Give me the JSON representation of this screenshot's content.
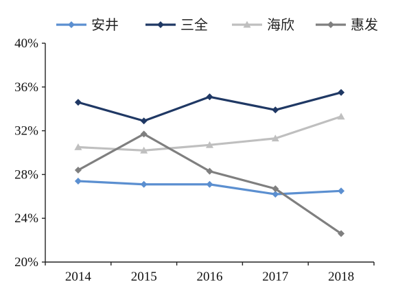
{
  "chart_data": {
    "type": "line",
    "categories": [
      "2014",
      "2015",
      "2016",
      "2017",
      "2018"
    ],
    "ylim": [
      0.2,
      0.4
    ],
    "yticks": [
      0.2,
      0.24,
      0.28,
      0.32,
      0.36,
      0.4
    ],
    "ytick_labels": [
      "20%",
      "24%",
      "28%",
      "32%",
      "36%",
      "40%"
    ],
    "grid": false,
    "legend_position": "top",
    "xlabel": "",
    "ylabel": "",
    "title": "",
    "series": [
      {
        "name": "安井",
        "color": "#5b8fd0",
        "marker": "diamond",
        "values": [
          0.274,
          0.271,
          0.271,
          0.262,
          0.265
        ]
      },
      {
        "name": "三全",
        "color": "#1f3864",
        "marker": "diamond",
        "values": [
          0.346,
          0.329,
          0.351,
          0.339,
          0.355
        ]
      },
      {
        "name": "海欣",
        "color": "#bfbfbf",
        "marker": "triangle",
        "values": [
          0.305,
          0.302,
          0.307,
          0.313,
          0.333
        ]
      },
      {
        "name": "惠发",
        "color": "#7f7f7f",
        "marker": "diamond",
        "values": [
          0.284,
          0.317,
          0.283,
          0.267,
          0.226
        ]
      }
    ]
  }
}
